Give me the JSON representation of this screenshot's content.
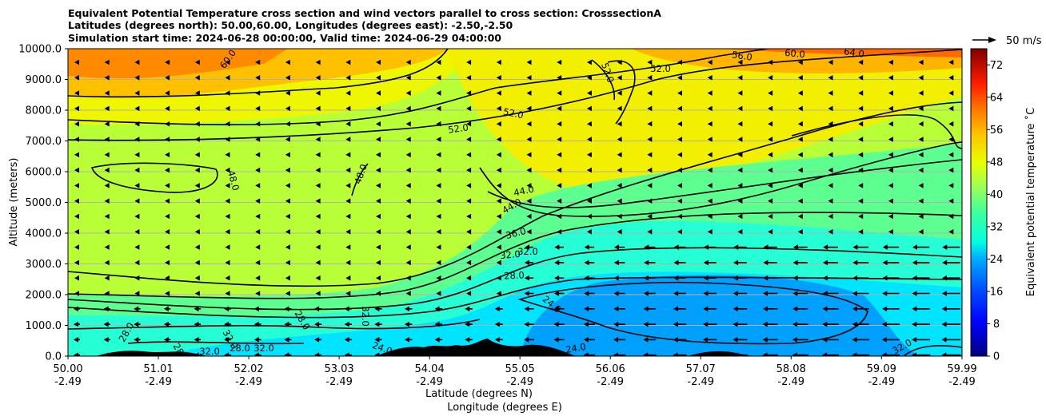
{
  "title_lines": [
    "Equivalent Potential Temperature cross section and wind vectors parallel to cross section: CrosssectionA",
    "Latitudes (degrees north): 50.00,60.00, Longitudes (degrees east): -2.50,-2.50",
    "Simulation start time: 2024-06-28 00:00:00, Valid time: 2024-06-29 04:00:00"
  ],
  "chart_data": {
    "type": "heatmap",
    "title": "Equivalent Potential Temperature cross section and wind vectors parallel to cross section: CrosssectionA",
    "xlabel_lines": [
      "Latitude (degrees N)",
      "Longitude (degrees E)"
    ],
    "ylabel": "Altitude (meters)",
    "ylim": [
      0,
      10000
    ],
    "xlim": [
      50.0,
      59.99
    ],
    "y_ticks": [
      "0.0",
      "1000.0",
      "2000.0",
      "3000.0",
      "4000.0",
      "5000.0",
      "6000.0",
      "7000.0",
      "8000.0",
      "9000.0",
      "10000.0"
    ],
    "x_ticks": [
      {
        "lat": "50.00",
        "lon": "-2.49"
      },
      {
        "lat": "51.01",
        "lon": "-2.49"
      },
      {
        "lat": "52.02",
        "lon": "-2.49"
      },
      {
        "lat": "53.03",
        "lon": "-2.49"
      },
      {
        "lat": "54.04",
        "lon": "-2.49"
      },
      {
        "lat": "55.05",
        "lon": "-2.49"
      },
      {
        "lat": "56.06",
        "lon": "-2.49"
      },
      {
        "lat": "57.07",
        "lon": "-2.49"
      },
      {
        "lat": "58.08",
        "lon": "-2.49"
      },
      {
        "lat": "59.09",
        "lon": "-2.49"
      },
      {
        "lat": "59.99",
        "lon": "-2.49"
      }
    ],
    "grid": "horizontal",
    "colorbar": {
      "label": "Equivalent potential temperature $^\\circ$C",
      "label_display": "Equivalent potential temperature ˚C",
      "min": 0,
      "max": 76,
      "ticks": [
        0,
        8,
        16,
        24,
        32,
        40,
        48,
        56,
        64,
        72
      ],
      "colormap": "jet"
    },
    "quiver_key": {
      "label": "50 m/s",
      "position": "top-right"
    },
    "contour_labels": [
      "60.0",
      "56.0",
      "60.0",
      "64.0",
      "52.0",
      "52.0",
      "52.0",
      "52.0",
      "48.0",
      "48.0",
      "44.0",
      "44.0",
      "36.0",
      "32.0",
      "32.0",
      "28.0",
      "24.0",
      "24.0",
      "28.0",
      "32.0",
      "32.0",
      "28.0",
      "32.0",
      "28.0",
      "32.0",
      "24.0",
      "28.0",
      "32.0"
    ],
    "colors": {
      "terrain": "#000000",
      "grid": "#b0b0b0",
      "contour": "#000000"
    }
  }
}
